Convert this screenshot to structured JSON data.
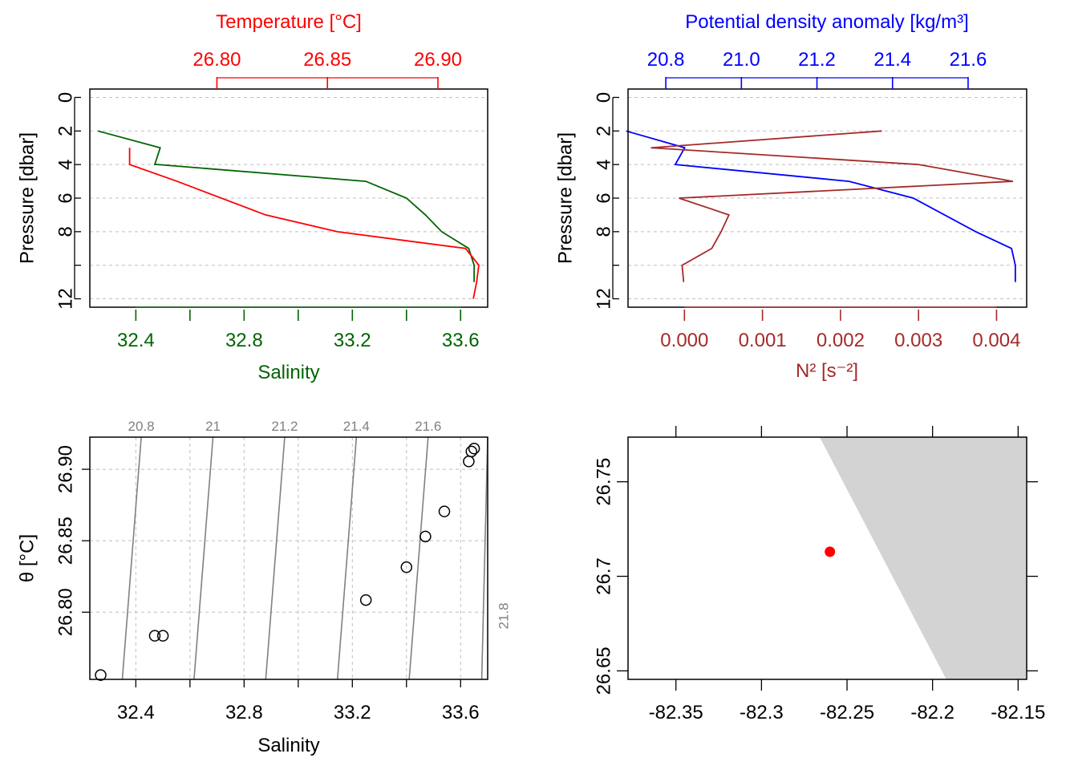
{
  "chart_data": [
    {
      "id": "ts-profile",
      "type": "line",
      "title": "",
      "xlabel_bottom": "Salinity",
      "xlabel_top": "Temperature [°C]",
      "ylabel": "Pressure [dbar]",
      "ylim": [
        12.5,
        -0.5
      ],
      "xlim_salinity": [
        32.23,
        33.7
      ],
      "xlim_temperature": [
        26.7425,
        26.9225
      ],
      "y_ticks": [
        "0",
        "2",
        "4",
        "6",
        "8",
        "12"
      ],
      "salinity_ticks": [
        "32.4",
        "32.8",
        "33.2",
        "33.6"
      ],
      "temperature_ticks": [
        "26.80",
        "26.85",
        "26.90"
      ],
      "grid": true,
      "colors": {
        "temperature": "#ff0000",
        "salinity": "#006400"
      },
      "series": [
        {
          "name": "Temperature",
          "axis": "top",
          "pressure": [
            4,
            3,
            3,
            4,
            5,
            7,
            8,
            9,
            10,
            11,
            12
          ],
          "values": [
            26.7605,
            26.7605,
            26.7605,
            26.7605,
            26.782,
            26.822,
            26.8545,
            26.9125,
            26.9185,
            26.9175,
            26.916
          ]
        },
        {
          "name": "Salinity",
          "axis": "bottom",
          "pressure": [
            2,
            3,
            4,
            4,
            5,
            6,
            7,
            8,
            9,
            10,
            11
          ],
          "values": [
            32.26,
            32.49,
            32.47,
            32.48,
            33.25,
            33.4,
            33.47,
            33.53,
            33.63,
            33.65,
            33.65
          ]
        }
      ]
    },
    {
      "id": "density-n2-profile",
      "type": "line",
      "title": "",
      "xlabel_top": "Potential density anomaly [kg/m³]",
      "xlabel_bottom": "N² [s⁻²]",
      "ylabel": "Pressure [dbar]",
      "ylim": [
        12.5,
        -0.5
      ],
      "xlim_density": [
        20.7,
        21.755
      ],
      "xlim_n2": [
        -0.000723,
        0.004386
      ],
      "y_ticks": [
        "0",
        "2",
        "4",
        "6",
        "8",
        "12"
      ],
      "density_ticks": [
        "20.8",
        "21.0",
        "21.2",
        "21.4",
        "21.6"
      ],
      "n2_ticks": [
        "0.000",
        "0.001",
        "0.002",
        "0.003",
        "0.004"
      ],
      "grid": true,
      "colors": {
        "density": "#0000ff",
        "n2": "#a52a2a"
      },
      "series": [
        {
          "name": "Potential density anomaly",
          "axis": "top",
          "pressure": [
            2,
            3,
            4,
            5,
            6,
            8,
            9,
            10,
            11
          ],
          "values": [
            20.695,
            20.85,
            20.825,
            21.285,
            21.455,
            21.62,
            21.715,
            21.725,
            21.725
          ]
        },
        {
          "name": "N²",
          "axis": "bottom",
          "pressure": [
            2,
            3,
            4,
            5,
            6,
            7,
            8,
            9,
            10,
            11
          ],
          "values": [
            0.00253,
            -0.00043,
            0.003,
            0.00421,
            -7e-05,
            0.00057,
            0.00047,
            0.00035,
            -3e-05,
            -1e-05
          ]
        }
      ]
    },
    {
      "id": "ts-diagram",
      "type": "scatter",
      "title": "",
      "xlabel": "Salinity",
      "ylabel": "θ [°C]",
      "xlim": [
        32.23,
        33.7
      ],
      "ylim": [
        26.753,
        26.9225
      ],
      "x_ticks": [
        "32.4",
        "32.8",
        "33.2",
        "33.6"
      ],
      "y_ticks": [
        "26.80",
        "26.85",
        "26.90"
      ],
      "grid": true,
      "points": [
        {
          "x": 32.27,
          "y": 26.756
        },
        {
          "x": 32.47,
          "y": 26.7835
        },
        {
          "x": 32.5,
          "y": 26.7835
        },
        {
          "x": 33.25,
          "y": 26.8085
        },
        {
          "x": 33.4,
          "y": 26.8315
        },
        {
          "x": 33.47,
          "y": 26.853
        },
        {
          "x": 33.54,
          "y": 26.8705
        },
        {
          "x": 33.63,
          "y": 26.9055
        },
        {
          "x": 33.64,
          "y": 26.9125
        },
        {
          "x": 33.65,
          "y": 26.9145
        }
      ],
      "isopycnals": [
        {
          "label": "20.8",
          "s_bottom": 32.35,
          "s_top": 32.42
        },
        {
          "label": "21",
          "s_bottom": 32.615,
          "s_top": 32.685
        },
        {
          "label": "21.2",
          "s_bottom": 32.88,
          "s_top": 32.95
        },
        {
          "label": "21.4",
          "s_bottom": 33.145,
          "s_top": 33.215
        },
        {
          "label": "21.6",
          "s_bottom": 33.41,
          "s_top": 33.48
        },
        {
          "label": "21.8",
          "s_bottom": 33.678,
          "s_top": 33.7
        }
      ]
    },
    {
      "id": "station-map",
      "type": "scatter",
      "title": "",
      "xlim": [
        -82.378,
        -82.145
      ],
      "ylim": [
        26.6455,
        26.7736
      ],
      "x_ticks": [
        -82.35,
        -82.3,
        -82.25,
        -82.2,
        -82.15
      ],
      "x_tick_labels": [
        "-82.35",
        "-82.3",
        "-82.25",
        "-82.2",
        "-82.15"
      ],
      "y_ticks": [
        26.65,
        26.7,
        26.75
      ],
      "y_tick_labels": [
        "26.65",
        "26.7",
        "26.75"
      ],
      "station": {
        "lon": -82.26,
        "lat": 26.713
      },
      "land_polygon": [
        [
          -82.266,
          26.7736
        ],
        [
          -82.145,
          26.7736
        ],
        [
          -82.145,
          26.6455
        ],
        [
          -82.192,
          26.6455
        ]
      ],
      "colors": {
        "station": "#ff0000",
        "land": "#d3d3d3"
      }
    }
  ]
}
